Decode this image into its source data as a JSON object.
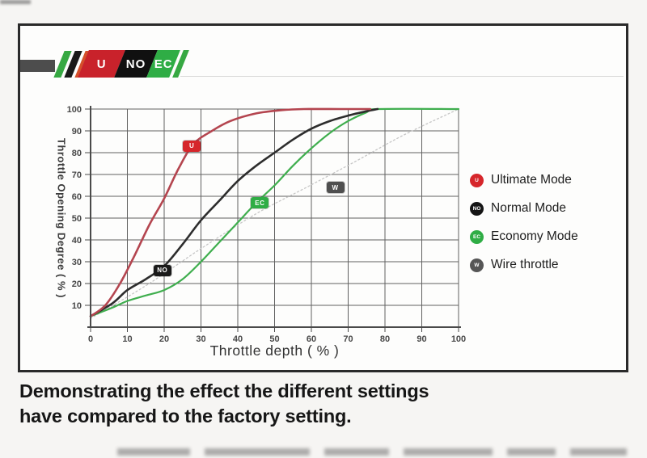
{
  "logo": {
    "chips": [
      {
        "label": "U",
        "bg": "#c9222b"
      },
      {
        "label": "NO",
        "bg": "#101010"
      },
      {
        "label": "EC",
        "bg": "#2fad45"
      }
    ]
  },
  "chart_data": {
    "type": "line",
    "xlabel": "Throttle depth ( % )",
    "ylabel": "Throttle Opening Degree ( % )",
    "xlim": [
      0,
      100
    ],
    "ylim": [
      0,
      100
    ],
    "grid": true,
    "legend_position": "right",
    "xticks": [
      0,
      10,
      20,
      30,
      40,
      50,
      60,
      70,
      80,
      90,
      100
    ],
    "yticks": [
      10,
      20,
      30,
      40,
      50,
      60,
      70,
      80,
      90,
      100
    ],
    "colors": {
      "grid": "#616161",
      "axis": "#4a4a4a"
    },
    "series": [
      {
        "id": "wire",
        "name": "Wire throttle",
        "color": "#c6c6c6",
        "width": 1.3,
        "dash": "2,3",
        "points": [
          [
            0,
            4
          ],
          [
            15,
            19
          ],
          [
            30,
            36
          ],
          [
            45,
            52
          ],
          [
            58,
            63.5
          ],
          [
            72,
            76
          ],
          [
            85,
            88
          ],
          [
            100,
            100
          ]
        ]
      },
      {
        "id": "economy",
        "name": "Economy Mode",
        "color": "#3fae4e",
        "width": 2.2,
        "dash": null,
        "points": [
          [
            0,
            5
          ],
          [
            6,
            9
          ],
          [
            10,
            12
          ],
          [
            15,
            14.5
          ],
          [
            20,
            17
          ],
          [
            25,
            22
          ],
          [
            30,
            30
          ],
          [
            35,
            39
          ],
          [
            40,
            48
          ],
          [
            45,
            57
          ],
          [
            50,
            65
          ],
          [
            55,
            74
          ],
          [
            60,
            82
          ],
          [
            65,
            89
          ],
          [
            70,
            94.5
          ],
          [
            75,
            98.5
          ],
          [
            78,
            100
          ],
          [
            100,
            100
          ]
        ]
      },
      {
        "id": "normal",
        "name": "Normal Mode",
        "color": "#2d2d2d",
        "width": 2.6,
        "dash": null,
        "points": [
          [
            0,
            5
          ],
          [
            6,
            11
          ],
          [
            10,
            17
          ],
          [
            15,
            22
          ],
          [
            20,
            28
          ],
          [
            25,
            38
          ],
          [
            30,
            49
          ],
          [
            35,
            58
          ],
          [
            40,
            67
          ],
          [
            45,
            74
          ],
          [
            50,
            80
          ],
          [
            55,
            86
          ],
          [
            60,
            91
          ],
          [
            65,
            94.5
          ],
          [
            70,
            97
          ],
          [
            75,
            99
          ],
          [
            78,
            100
          ]
        ]
      },
      {
        "id": "ultimate",
        "name": "Ultimate Mode",
        "color": "#b4454f",
        "width": 2.6,
        "dash": null,
        "points": [
          [
            0,
            5
          ],
          [
            4,
            10
          ],
          [
            8,
            20
          ],
          [
            12,
            33
          ],
          [
            16,
            47
          ],
          [
            20,
            59
          ],
          [
            24,
            73
          ],
          [
            28,
            84
          ],
          [
            33,
            90
          ],
          [
            38,
            94.5
          ],
          [
            45,
            98
          ],
          [
            52,
            99.5
          ],
          [
            58,
            100
          ],
          [
            68,
            100
          ],
          [
            76,
            100
          ]
        ]
      }
    ],
    "badges": [
      {
        "label": "U",
        "x": 27.5,
        "y": 83,
        "bg": "#d6262b"
      },
      {
        "label": "NO",
        "x": 19.5,
        "y": 26,
        "bg": "#1a1a1a"
      },
      {
        "label": "EC",
        "x": 46,
        "y": 57,
        "bg": "#2fad45"
      },
      {
        "label": "W",
        "x": 66.5,
        "y": 64,
        "bg": "#4f4f4f"
      }
    ]
  },
  "legend": {
    "items": [
      {
        "letter": "U",
        "label": "Ultimate Mode",
        "color": "#d6262b"
      },
      {
        "letter": "NO",
        "label": "Normal Mode",
        "color": "#151515"
      },
      {
        "letter": "EC",
        "label": "Economy Mode",
        "color": "#2fad45"
      },
      {
        "letter": "W",
        "label": "Wire throttle",
        "color": "#565656"
      }
    ]
  },
  "caption": {
    "lines": [
      "Demonstrating the effect the different settings",
      "have compared to the factory setting."
    ]
  }
}
